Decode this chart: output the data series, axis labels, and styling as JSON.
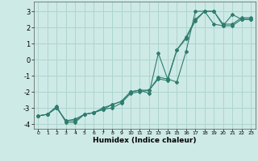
{
  "title": "",
  "xlabel": "Humidex (Indice chaleur)",
  "ylabel": "",
  "background_color": "#ceeae6",
  "grid_color": "#aed4cf",
  "line_color": "#2e7d6e",
  "xlim": [
    -0.5,
    23.5
  ],
  "ylim": [
    -4.3,
    3.6
  ],
  "yticks": [
    -4,
    -3,
    -2,
    -1,
    0,
    1,
    2,
    3
  ],
  "xticks": [
    0,
    1,
    2,
    3,
    4,
    5,
    6,
    7,
    8,
    9,
    10,
    11,
    12,
    13,
    14,
    15,
    16,
    17,
    18,
    19,
    20,
    21,
    22,
    23
  ],
  "series": [
    {
      "x": [
        0,
        1,
        2,
        3,
        4,
        5,
        6,
        7,
        8,
        9,
        10,
        11,
        12,
        13,
        14,
        15,
        16,
        17,
        18,
        19,
        20,
        21,
        22,
        23
      ],
      "y": [
        -3.5,
        -3.4,
        -3.0,
        -3.8,
        -3.8,
        -3.4,
        -3.3,
        -3.1,
        -3.0,
        -2.7,
        -2.1,
        -2.0,
        -1.9,
        -1.2,
        -1.3,
        0.6,
        1.4,
        2.5,
        3.0,
        3.0,
        2.2,
        2.2,
        2.6,
        2.6
      ]
    },
    {
      "x": [
        0,
        1,
        2,
        3,
        4,
        5,
        6,
        7,
        8,
        9,
        10,
        11,
        12,
        13,
        14,
        15,
        16,
        17,
        18,
        19,
        20,
        21,
        22,
        23
      ],
      "y": [
        -3.5,
        -3.4,
        -3.0,
        -3.8,
        -3.7,
        -3.4,
        -3.3,
        -3.0,
        -2.8,
        -2.6,
        -2.0,
        -1.9,
        -1.9,
        -1.1,
        -1.2,
        0.6,
        1.3,
        2.4,
        3.0,
        3.0,
        2.1,
        2.1,
        2.5,
        2.5
      ]
    },
    {
      "x": [
        0,
        1,
        2,
        3,
        4,
        5,
        6,
        7,
        8,
        9,
        10,
        11,
        12,
        13,
        14,
        15,
        16,
        17,
        18,
        19,
        20,
        21,
        22,
        23
      ],
      "y": [
        -3.5,
        -3.4,
        -2.9,
        -3.9,
        -3.9,
        -3.4,
        -3.3,
        -3.1,
        -2.8,
        -2.6,
        -2.0,
        -1.9,
        -2.1,
        0.4,
        -1.2,
        -1.4,
        0.5,
        3.0,
        3.0,
        2.2,
        2.1,
        2.8,
        2.5,
        2.5
      ]
    }
  ]
}
